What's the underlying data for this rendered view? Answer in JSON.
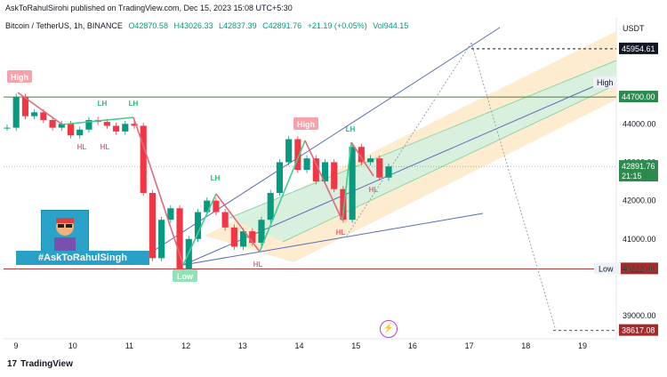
{
  "header": {
    "publisher": "AskToRahulSirohi published on TradingView.com, Dec 15, 2023 15:08 UTC+5:30"
  },
  "legend": {
    "symbol": "Bitcoin / TetherUS, 1h, BINANCE",
    "open": "O42870.58",
    "high": "H43026.33",
    "low": "L42837.39",
    "close": "C42891.76",
    "change": "+21.19 (+0.05%)",
    "volume": "Vol944.15"
  },
  "currency": "USDT",
  "footer": {
    "brand": "TradingView",
    "logo_glyph": "17"
  },
  "badge": {
    "text": "#AskToRahulSingh"
  },
  "colors": {
    "up": "#089981",
    "down": "#f23645",
    "channel_line": "#5b6bb8",
    "orange_band": "#fce7c4",
    "green_band": "#d5f1df",
    "horizontal": "#4a7f3a",
    "low_line": "#a52a2a",
    "zigzag_red": "#e06b7b",
    "zigzag_green": "#3ecf8e"
  },
  "chart_data": {
    "type": "candlestick",
    "x_ticks": [
      "9",
      "10",
      "11",
      "12",
      "13",
      "14",
      "15",
      "16",
      "17",
      "18",
      "19"
    ],
    "y_ticks": [
      "44700.00",
      "44000.00",
      "43000.00",
      "42000.00",
      "41000.00",
      "40222.00",
      "39000.00"
    ],
    "y_range": [
      38400,
      46300
    ],
    "price_labels": [
      {
        "text": "45954.61",
        "value": 45954.61,
        "style": "dark"
      },
      {
        "text": "44700.00",
        "value": 44700,
        "style": "plain"
      },
      {
        "text": "44700.00",
        "value": 44700,
        "style": "green"
      },
      {
        "text": "42891.76",
        "value": 42891.76,
        "style": "green",
        "sub": "21:15"
      },
      {
        "text": "40222.00",
        "value": 40222,
        "style": "red"
      },
      {
        "text": "40222.00",
        "value": 40222,
        "style": "plain",
        "prefix": "Low"
      },
      {
        "text": "38617.08",
        "value": 38617.08,
        "style": "red"
      }
    ],
    "line_labels": {
      "high": "High",
      "low": "Low"
    },
    "annotations": [
      {
        "text": "High",
        "kind": "red-box"
      },
      {
        "text": "LH",
        "kind": "green"
      },
      {
        "text": "LH",
        "kind": "green"
      },
      {
        "text": "HL",
        "kind": "red"
      },
      {
        "text": "HL",
        "kind": "red"
      },
      {
        "text": "Low",
        "kind": "green-box"
      },
      {
        "text": "LH",
        "kind": "green"
      },
      {
        "text": "HL",
        "kind": "red"
      },
      {
        "text": "High",
        "kind": "red-box"
      },
      {
        "text": "LH",
        "kind": "green"
      },
      {
        "text": "HL",
        "kind": "red"
      },
      {
        "text": "HL",
        "kind": "red"
      }
    ],
    "price_series_approx": [
      43900,
      44700,
      44200,
      44300,
      44100,
      43900,
      44000,
      43700,
      43850,
      44100,
      44050,
      43950,
      43800,
      44000,
      43950,
      42200,
      40500,
      41500,
      41800,
      40222,
      41000,
      41700,
      42000,
      41700,
      41300,
      40800,
      41200,
      40900,
      41500,
      42200,
      43000,
      43600,
      42800,
      43100,
      42500,
      43000,
      42300,
      41500,
      43400,
      43000,
      43100,
      42600,
      42890
    ]
  }
}
